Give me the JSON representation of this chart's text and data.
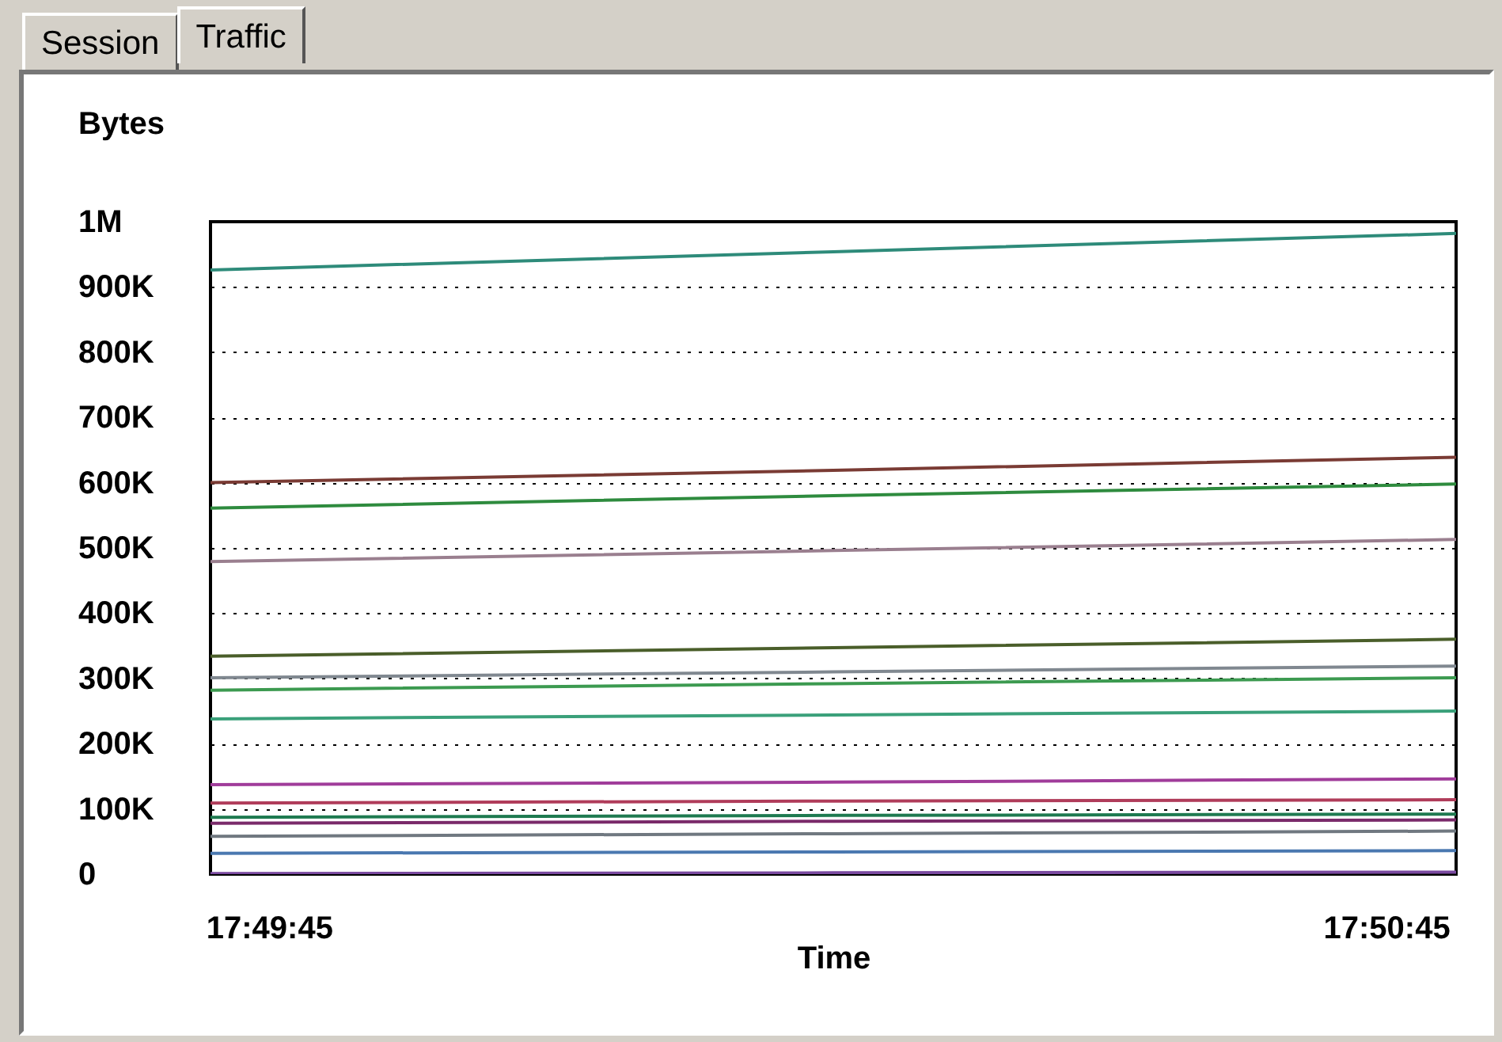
{
  "chart_data": {
    "type": "line",
    "ylabel": "Bytes",
    "xlabel": "Time",
    "annotations": [
      "Session",
      "Traffic"
    ],
    "x": [
      17.828295,
      17.837586,
      17.846877
    ],
    "xlim": [
      17.828295,
      17.846877
    ],
    "xticks": [
      {
        "value": 17.829167,
        "label": "17:49:45"
      },
      {
        "value": 17.845833,
        "label": "17:50:45"
      }
    ],
    "ylim": [
      0,
      1000000
    ],
    "yticks": [
      0,
      {
        "value": 100000,
        "label": "100K"
      },
      {
        "value": 200000,
        "label": "200K"
      },
      {
        "value": 300000,
        "label": "300K"
      },
      {
        "value": 400000,
        "label": "400K"
      },
      {
        "value": 500000,
        "label": "500K"
      },
      {
        "value": 600000,
        "label": "600K"
      },
      {
        "value": 700000,
        "label": "700K"
      },
      {
        "value": 800000,
        "label": "800K"
      },
      {
        "value": 900000,
        "label": "900K"
      },
      {
        "value": 1000000,
        "label": "1M"
      }
    ],
    "grid": "y",
    "legend": false,
    "series": [
      {
        "color": "#2e8b7a",
        "values": [
          926000,
          954000,
          982000
        ]
      },
      {
        "color": "#7a3b34",
        "values": [
          600000,
          619000,
          639000
        ]
      },
      {
        "color": "#2e8b3e",
        "values": [
          561000,
          580000,
          598000
        ]
      },
      {
        "color": "#9a7f8f",
        "values": [
          479000,
          496000,
          513000
        ]
      },
      {
        "color": "#4a5e2a",
        "values": [
          334000,
          347000,
          360000
        ]
      },
      {
        "color": "#808890",
        "values": [
          301000,
          310000,
          319000
        ]
      },
      {
        "color": "#3c9a50",
        "values": [
          282000,
          292000,
          301000
        ]
      },
      {
        "color": "#3aa07a",
        "values": [
          238000,
          244000,
          250000
        ]
      },
      {
        "color": "#a03c9a",
        "values": [
          137000,
          141000,
          146000
        ]
      },
      {
        "color": "#b03c5a",
        "values": [
          109000,
          112000,
          114000
        ]
      },
      {
        "color": "#1e7a50",
        "values": [
          87000,
          90000,
          92000
        ]
      },
      {
        "color": "#7a2a6a",
        "values": [
          78000,
          81000,
          83000
        ]
      },
      {
        "color": "#707880",
        "values": [
          58000,
          62000,
          66000
        ]
      },
      {
        "color": "#4a78b0",
        "values": [
          32000,
          34000,
          36000
        ]
      },
      {
        "color": "#7a4aa0",
        "values": [
          1000,
          2000,
          3000
        ]
      }
    ]
  }
}
